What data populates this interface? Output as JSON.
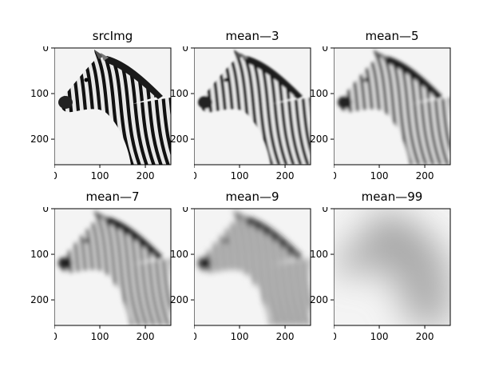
{
  "figure": {
    "background": "#ffffff",
    "image_background": "#f4f4f4",
    "stripe_color": "#111111",
    "panels": [
      {
        "title": "srcImg",
        "blur": 0
      },
      {
        "title": "mean—3",
        "blur": 1.2
      },
      {
        "title": "mean—5",
        "blur": 2.0
      },
      {
        "title": "mean—7",
        "blur": 2.8
      },
      {
        "title": "mean—9",
        "blur": 3.6
      },
      {
        "title": "mean—99",
        "blur": 22
      }
    ],
    "axis": {
      "x_ticks": [
        "0",
        "100",
        "200"
      ],
      "y_ticks": [
        "0",
        "100",
        "200"
      ],
      "x_tick_values": [
        0,
        100,
        200
      ],
      "y_tick_values": [
        0,
        100,
        200
      ],
      "range": [
        0,
        256
      ]
    }
  }
}
